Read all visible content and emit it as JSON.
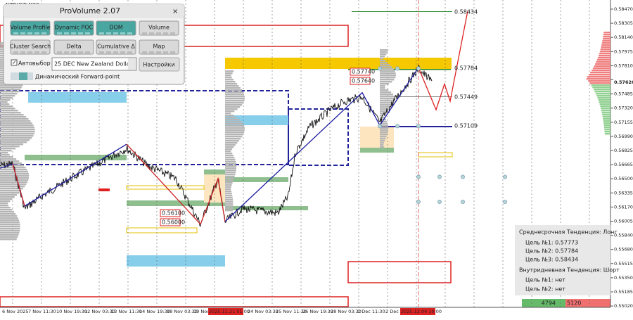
{
  "symbol": "NZDUSD,M30",
  "panel": {
    "title": "ProVolume 2.07",
    "buttons": [
      "Volume Profile",
      "Dynamic POC",
      "DOM",
      "Volume",
      "Cluster Search",
      "Delta",
      "Cumulative Δ",
      "Map"
    ],
    "checkbox": "Автовыбор",
    "select": "25 DEC New Zealand Dollar",
    "settings": "Настройки",
    "forward": "Динамический Forward-point"
  },
  "price_axis": [
    "0.58470",
    "0.58305",
    "0.58140",
    "0.57975",
    "0.57810",
    "0.57620",
    "0.57485",
    "0.57320",
    "0.57155",
    "0.56990",
    "0.56825",
    "0.56665",
    "0.56500",
    "0.56335",
    "0.56170",
    "0.56005",
    "0.55840",
    "0.55680",
    "0.55515",
    "0.55350",
    "0.55185",
    "0.55020"
  ],
  "time_axis": [
    "6 Nov 2025",
    "7 Nov 11:30",
    "10 Nov 19:30",
    "12 Nov 03:30",
    "13 Nov 11:30",
    "14 Nov 19:30",
    "18 Nov 03:30",
    "19 Nov",
    "2025.11.21 01:00",
    "24 Nov 03:30",
    "25 Nov 11:30",
    "26 Nov 19:30",
    "28 Nov 03:30",
    "1 Dec 11:30",
    "2 Dec 19:",
    "2025.12.04 10:00"
  ],
  "levels": [
    "0.58434",
    "0.57784",
    "0.57449",
    "0.57109",
    "0.57740",
    "0.57640",
    "0.56100",
    "0.56000"
  ],
  "trend": {
    "mid": "Среднесрочная Тенденция: Лонг",
    "mid_targets": [
      "Цель №1: 0.57773",
      "Цель №2: 0.57784",
      "Цель №3: 0.58434"
    ],
    "intraday": "Внутридневная Тенденция: Шорт",
    "intraday_targets": [
      "Цель №1: нет",
      "Цель №2: нет"
    ]
  },
  "footer": {
    "buy": "4794",
    "sell": "5120"
  }
}
